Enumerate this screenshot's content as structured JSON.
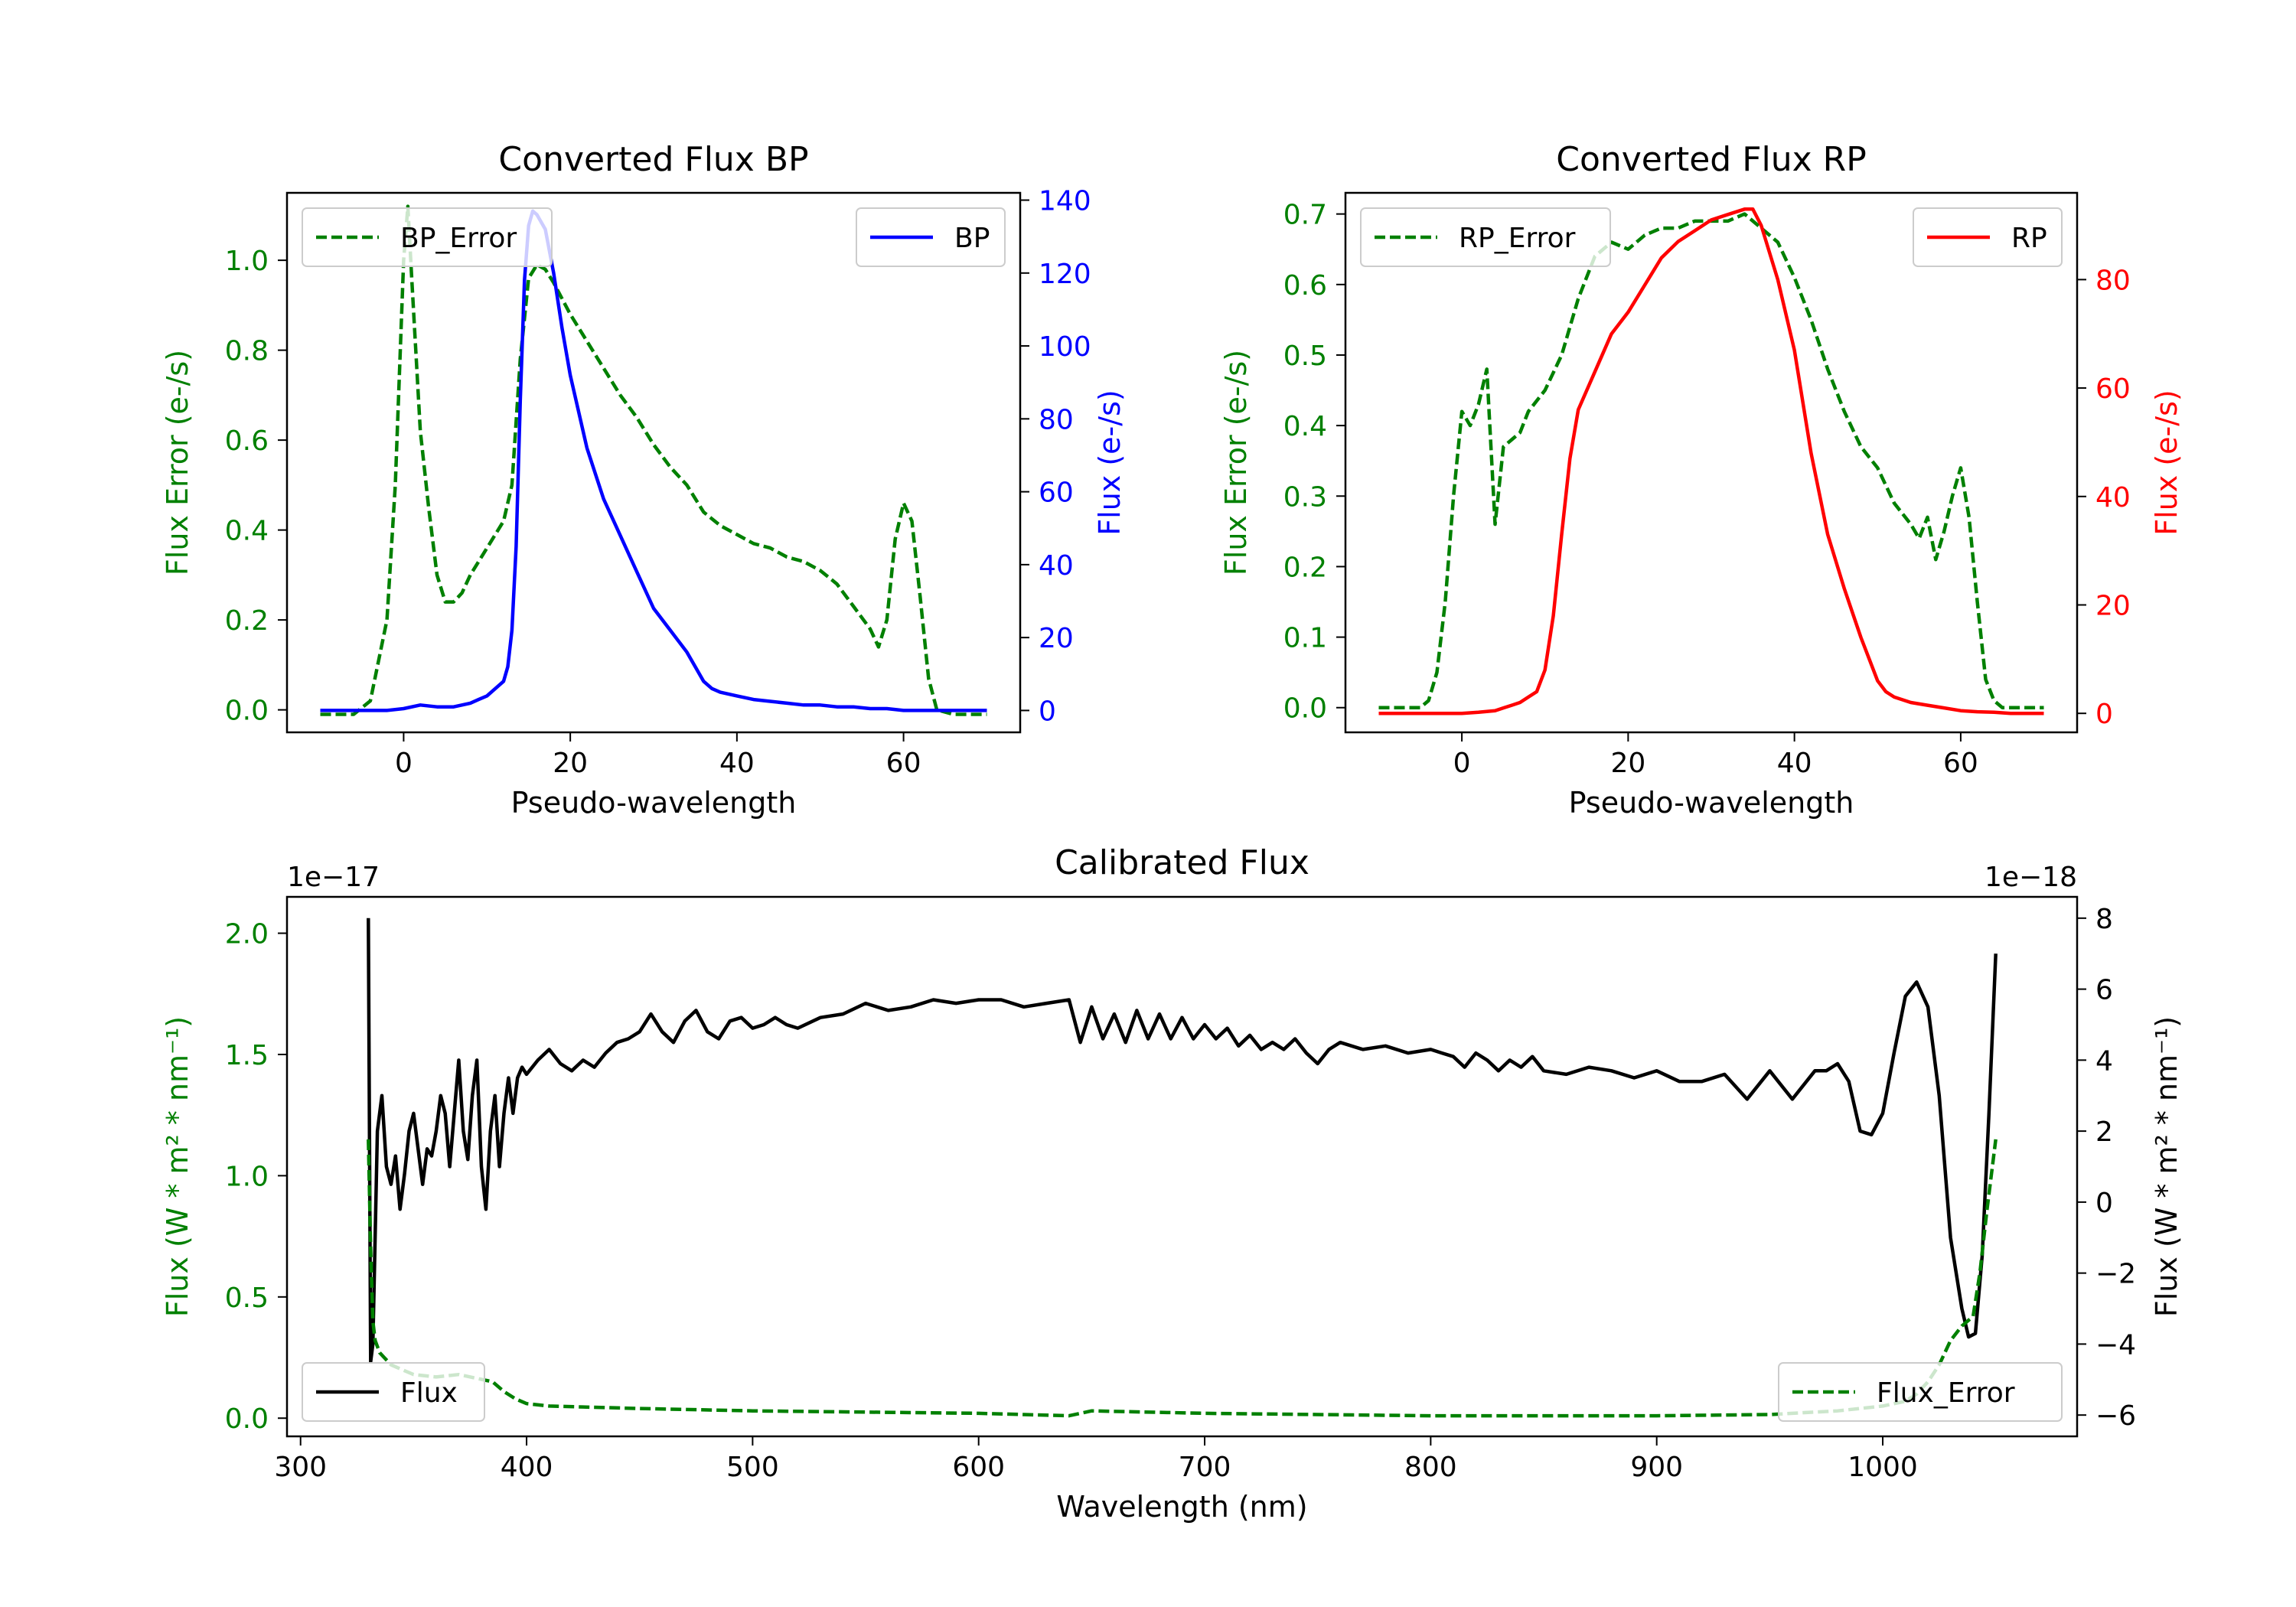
{
  "chart_data": [
    {
      "id": "bp",
      "type": "line",
      "title": "Converted Flux BP",
      "xlabel": "Pseudo-wavelength",
      "ylabel_left": "Flux Error (e-/s)",
      "ylabel_right": "Flux (e-/s)",
      "xlim": [
        -14,
        74
      ],
      "ylim_left": [
        -0.05,
        1.15
      ],
      "ylim_right": [
        -6,
        142
      ],
      "xticks": [
        0,
        20,
        40,
        60
      ],
      "yticks_left": [
        0.0,
        0.2,
        0.4,
        0.6,
        0.8,
        1.0
      ],
      "yticks_right": [
        0,
        20,
        40,
        60,
        80,
        100,
        120,
        140
      ],
      "left_color": "#008000",
      "right_color": "#0000ff",
      "series": [
        {
          "name": "BP_Error",
          "axis": "left",
          "style": "dashed",
          "color": "#008000",
          "x": [
            -10,
            -6,
            -4,
            -2,
            -1,
            0,
            0.5,
            1,
            2,
            3,
            4,
            5,
            6,
            7,
            8,
            9,
            10,
            11,
            12,
            13,
            14,
            15,
            16,
            17,
            18,
            20,
            22,
            24,
            26,
            28,
            30,
            32,
            34,
            36,
            38,
            40,
            42,
            44,
            46,
            48,
            50,
            52,
            54,
            56,
            57,
            58,
            59,
            60,
            61,
            62,
            63,
            64,
            66,
            70
          ],
          "y": [
            -0.01,
            -0.01,
            0.02,
            0.2,
            0.5,
            1.0,
            1.12,
            0.95,
            0.62,
            0.45,
            0.3,
            0.24,
            0.24,
            0.26,
            0.3,
            0.33,
            0.36,
            0.39,
            0.42,
            0.5,
            0.78,
            0.96,
            0.99,
            0.98,
            0.95,
            0.88,
            0.82,
            0.76,
            0.7,
            0.65,
            0.59,
            0.54,
            0.5,
            0.44,
            0.41,
            0.39,
            0.37,
            0.36,
            0.34,
            0.33,
            0.31,
            0.28,
            0.23,
            0.18,
            0.14,
            0.2,
            0.38,
            0.46,
            0.42,
            0.25,
            0.07,
            0.0,
            -0.01,
            -0.01
          ]
        },
        {
          "name": "BP",
          "axis": "right",
          "style": "solid",
          "color": "#0000ff",
          "x": [
            -10,
            -5,
            -2,
            0,
            2,
            4,
            6,
            8,
            9,
            10,
            11,
            12,
            12.5,
            13,
            13.5,
            14,
            14.5,
            15,
            15.5,
            16,
            17,
            18,
            19,
            20,
            22,
            24,
            26,
            28,
            30,
            32,
            34,
            35,
            36,
            37,
            38,
            40,
            42,
            44,
            46,
            48,
            50,
            52,
            54,
            56,
            58,
            60,
            62,
            64,
            66,
            70
          ],
          "y": [
            0,
            0,
            0,
            0.5,
            1.5,
            1,
            1,
            2,
            3,
            4,
            6,
            8,
            12,
            22,
            45,
            85,
            118,
            133,
            137,
            136,
            132,
            120,
            105,
            92,
            72,
            58,
            48,
            38,
            28,
            22,
            16,
            12,
            8,
            6,
            5,
            4,
            3,
            2.5,
            2,
            1.5,
            1.5,
            1,
            1,
            0.5,
            0.5,
            0,
            0,
            0,
            0,
            0
          ]
        }
      ],
      "legend": [
        {
          "label": "BP_Error",
          "style": "dashed",
          "color": "#008000",
          "loc": "upper left"
        },
        {
          "label": "BP",
          "style": "solid",
          "color": "#0000ff",
          "loc": "upper right"
        }
      ]
    },
    {
      "id": "rp",
      "type": "line",
      "title": "Converted Flux RP",
      "xlabel": "Pseudo-wavelength",
      "ylabel_left": "Flux Error (e-/s)",
      "ylabel_right": "Flux (e-/s)",
      "xlim": [
        -14,
        74
      ],
      "ylim_left": [
        -0.035,
        0.73
      ],
      "ylim_right": [
        -3.5,
        96
      ],
      "xticks": [
        0,
        20,
        40,
        60
      ],
      "yticks_left": [
        0.0,
        0.1,
        0.2,
        0.3,
        0.4,
        0.5,
        0.6,
        0.7
      ],
      "yticks_right": [
        0,
        20,
        40,
        60,
        80
      ],
      "left_color": "#008000",
      "right_color": "#ff0000",
      "series": [
        {
          "name": "RP_Error",
          "axis": "left",
          "style": "dashed",
          "color": "#008000",
          "x": [
            -10,
            -5,
            -4,
            -3,
            -2,
            -1,
            0,
            1,
            2,
            3,
            4,
            5,
            6,
            7,
            8,
            10,
            12,
            14,
            16,
            18,
            20,
            22,
            24,
            26,
            28,
            30,
            32,
            34,
            36,
            38,
            40,
            42,
            44,
            46,
            48,
            50,
            52,
            54,
            55,
            56,
            57,
            58,
            59,
            60,
            61,
            62,
            63,
            64,
            65,
            70
          ],
          "y": [
            0.0,
            0.0,
            0.01,
            0.05,
            0.15,
            0.3,
            0.42,
            0.4,
            0.43,
            0.48,
            0.26,
            0.37,
            0.38,
            0.39,
            0.42,
            0.45,
            0.5,
            0.58,
            0.64,
            0.66,
            0.65,
            0.67,
            0.68,
            0.68,
            0.69,
            0.69,
            0.69,
            0.7,
            0.68,
            0.66,
            0.61,
            0.55,
            0.48,
            0.42,
            0.37,
            0.34,
            0.29,
            0.26,
            0.24,
            0.27,
            0.21,
            0.25,
            0.3,
            0.34,
            0.27,
            0.15,
            0.04,
            0.01,
            0.0,
            0.0
          ]
        },
        {
          "name": "RP",
          "axis": "right",
          "style": "solid",
          "color": "#ff0000",
          "x": [
            -10,
            -5,
            0,
            2,
            4,
            5,
            6,
            7,
            8,
            9,
            10,
            11,
            12,
            13,
            14,
            16,
            18,
            20,
            22,
            24,
            26,
            28,
            30,
            32,
            34,
            35,
            36,
            38,
            40,
            42,
            44,
            46,
            48,
            49,
            50,
            51,
            52,
            54,
            56,
            58,
            60,
            62,
            64,
            66,
            70
          ],
          "y": [
            0,
            0,
            0,
            0.2,
            0.5,
            1,
            1.5,
            2,
            3,
            4,
            8,
            18,
            33,
            47,
            56,
            63,
            70,
            74,
            79,
            84,
            87,
            89,
            91,
            92,
            93,
            93,
            90,
            80,
            67,
            48,
            33,
            23,
            14,
            10,
            6,
            4,
            3,
            2,
            1.5,
            1,
            0.5,
            0.3,
            0.2,
            0,
            0
          ]
        }
      ],
      "legend": [
        {
          "label": "RP_Error",
          "style": "dashed",
          "color": "#008000",
          "loc": "upper left"
        },
        {
          "label": "RP",
          "style": "solid",
          "color": "#ff0000",
          "loc": "upper right"
        }
      ]
    },
    {
      "id": "cal",
      "type": "line",
      "title": "Calibrated Flux",
      "xlabel": "Wavelength (nm)",
      "ylabel_left": "Flux (W * m² * nm⁻¹)",
      "ylabel_right": "Flux (W * m² * nm⁻¹)",
      "offset_left": "1e−17",
      "offset_right": "1e−18",
      "xlim": [
        294,
        1086
      ],
      "ylim_left": [
        -0.075,
        2.15
      ],
      "ylim_right": [
        -6.6,
        8.6
      ],
      "xticks": [
        300,
        400,
        500,
        600,
        700,
        800,
        900,
        1000
      ],
      "yticks_left": [
        0.0,
        0.5,
        1.0,
        1.5,
        2.0
      ],
      "yticks_right": [
        -6,
        -4,
        -2,
        0,
        2,
        4,
        6,
        8
      ],
      "left_color": "#008000",
      "right_color": "#000000",
      "series": [
        {
          "name": "Flux",
          "axis": "right",
          "style": "solid",
          "color": "#000000",
          "x": [
            330,
            331,
            332,
            334,
            336,
            338,
            340,
            342,
            344,
            346,
            348,
            350,
            352,
            354,
            356,
            358,
            360,
            362,
            364,
            366,
            368,
            370,
            372,
            374,
            376,
            378,
            380,
            382,
            384,
            386,
            388,
            390,
            392,
            394,
            396,
            398,
            400,
            405,
            410,
            415,
            420,
            425,
            430,
            435,
            440,
            445,
            450,
            455,
            460,
            465,
            470,
            475,
            480,
            485,
            490,
            495,
            500,
            505,
            510,
            515,
            520,
            530,
            540,
            550,
            560,
            570,
            580,
            590,
            600,
            610,
            620,
            630,
            640,
            645,
            650,
            655,
            660,
            665,
            670,
            675,
            680,
            685,
            690,
            695,
            700,
            705,
            710,
            715,
            720,
            725,
            730,
            735,
            740,
            745,
            750,
            755,
            760,
            770,
            780,
            790,
            800,
            805,
            810,
            815,
            820,
            825,
            830,
            835,
            840,
            845,
            850,
            860,
            870,
            880,
            890,
            900,
            910,
            920,
            930,
            940,
            950,
            960,
            970,
            975,
            980,
            985,
            990,
            995,
            1000,
            1005,
            1010,
            1015,
            1020,
            1025,
            1030,
            1035,
            1038,
            1041,
            1044,
            1047,
            1050
          ],
          "y": [
            8.0,
            -4.5,
            -4.0,
            2.0,
            3.0,
            1.0,
            0.5,
            1.3,
            -0.2,
            0.8,
            2.0,
            2.5,
            1.5,
            0.5,
            1.5,
            1.3,
            2.0,
            3.0,
            2.5,
            1.0,
            2.5,
            4.0,
            2.0,
            1.2,
            3.0,
            4.0,
            1.0,
            -0.2,
            2.0,
            3.0,
            1.0,
            2.5,
            3.5,
            2.5,
            3.5,
            3.8,
            3.6,
            4.0,
            4.3,
            3.9,
            3.7,
            4.0,
            3.8,
            4.2,
            4.5,
            4.6,
            4.8,
            5.3,
            4.8,
            4.5,
            5.1,
            5.4,
            4.8,
            4.6,
            5.1,
            5.2,
            4.9,
            5.0,
            5.2,
            5.0,
            4.9,
            5.2,
            5.3,
            5.6,
            5.4,
            5.5,
            5.7,
            5.6,
            5.7,
            5.7,
            5.5,
            5.6,
            5.7,
            4.5,
            5.5,
            4.6,
            5.3,
            4.5,
            5.4,
            4.6,
            5.3,
            4.6,
            5.2,
            4.6,
            5.0,
            4.6,
            4.9,
            4.4,
            4.7,
            4.3,
            4.5,
            4.3,
            4.6,
            4.2,
            3.9,
            4.3,
            4.5,
            4.3,
            4.4,
            4.2,
            4.3,
            4.2,
            4.1,
            3.8,
            4.2,
            4.0,
            3.7,
            4.0,
            3.8,
            4.1,
            3.7,
            3.6,
            3.8,
            3.7,
            3.5,
            3.7,
            3.4,
            3.4,
            3.6,
            2.9,
            3.7,
            2.9,
            3.7,
            3.7,
            3.9,
            3.4,
            2.0,
            1.9,
            2.5,
            4.2,
            5.8,
            6.2,
            5.5,
            3.0,
            -1.0,
            -3.0,
            -3.8,
            -3.7,
            -1.5,
            2.5,
            7.0
          ]
        },
        {
          "name": "Flux_Error",
          "axis": "left",
          "style": "dashed",
          "color": "#008000",
          "x": [
            330,
            331,
            332,
            333,
            335,
            337,
            340,
            345,
            350,
            360,
            370,
            380,
            385,
            390,
            395,
            400,
            410,
            430,
            450,
            500,
            550,
            600,
            620,
            640,
            650,
            700,
            750,
            800,
            850,
            900,
            950,
            980,
            1000,
            1010,
            1015,
            1020,
            1025,
            1030,
            1035,
            1040,
            1043,
            1046,
            1050
          ],
          "y": [
            1.15,
            0.7,
            0.4,
            0.32,
            0.27,
            0.25,
            0.22,
            0.2,
            0.18,
            0.17,
            0.18,
            0.16,
            0.15,
            0.11,
            0.08,
            0.06,
            0.05,
            0.045,
            0.04,
            0.03,
            0.025,
            0.02,
            0.015,
            0.01,
            0.03,
            0.02,
            0.015,
            0.01,
            0.01,
            0.01,
            0.015,
            0.03,
            0.05,
            0.07,
            0.1,
            0.15,
            0.22,
            0.32,
            0.38,
            0.42,
            0.6,
            0.85,
            1.15
          ]
        }
      ],
      "legend": [
        {
          "label": "Flux",
          "style": "solid",
          "color": "#000000",
          "loc": "lower left"
        },
        {
          "label": "Flux_Error",
          "style": "dashed",
          "color": "#008000",
          "loc": "lower right"
        }
      ]
    }
  ]
}
